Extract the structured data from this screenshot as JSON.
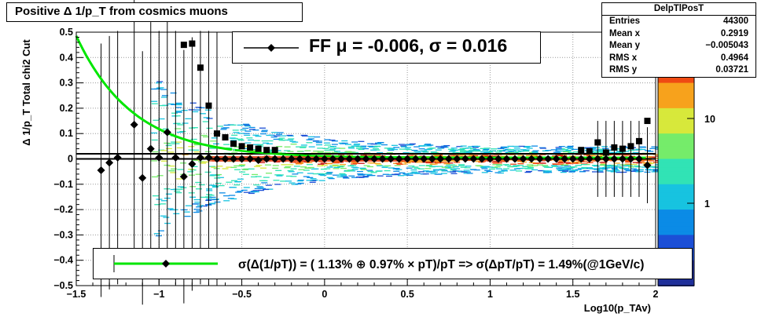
{
  "title": "Positive Δ 1/p_T from cosmics muons",
  "stats": {
    "name": "DelpTlPosT",
    "rows": [
      {
        "label": "Entries",
        "value": "44300"
      },
      {
        "label": "Mean x",
        "value": "0.2919"
      },
      {
        "label": "Mean y",
        "value": "−0.005043"
      },
      {
        "label": "RMS x",
        "value": "0.4964"
      },
      {
        "label": "RMS y",
        "value": "0.03721"
      }
    ]
  },
  "legend_top": "FF μ = -0.006, σ =   0.016",
  "legend_bottom": "σ(Δ(1/pT)) = ( 1.13% ⊕  0.97% × pT)/pT => σ(ΔpT/pT) =  1.49%(@1GeV/c)",
  "colors": {
    "fit": "#00e600",
    "markers": "#000000"
  },
  "chart_data": {
    "type": "scatter",
    "title": "Positive Δ 1/p_T from cosmics muons",
    "xlabel": "Log10(p_TAv)",
    "ylabel": "Δ 1/p_T   Total chi2 Cut",
    "xlim": [
      -1.5,
      2.0
    ],
    "ylim": [
      -0.5,
      0.5
    ],
    "x_ticks": [
      "−1.5",
      "−1",
      "−0.5",
      "0",
      "0.5",
      "1",
      "1.5",
      "2"
    ],
    "y_ticks": [
      "−0.5",
      "−0.4",
      "−0.3",
      "−0.2",
      "−0.1",
      "0",
      "0.1",
      "0.2",
      "0.3",
      "0.4",
      "0.5"
    ],
    "colorbar_labels": [
      "1",
      "10"
    ],
    "grid": true,
    "series": [
      {
        "name": "FF",
        "marker": "diamond",
        "x": [
          -1.35,
          -1.3,
          -1.25,
          -1.15,
          -1.1,
          -1.05,
          -1.0,
          -0.95,
          -0.9,
          -0.85,
          -0.8,
          -0.75,
          -0.7,
          -0.65,
          -0.6,
          -0.55,
          -0.5,
          -0.45,
          -0.4,
          -0.35,
          -0.3,
          -0.25,
          -0.2,
          -0.15,
          -0.1,
          -0.05,
          0.0,
          0.05,
          0.1,
          0.15,
          0.2,
          0.25,
          0.3,
          0.35,
          0.4,
          0.45,
          0.5,
          0.55,
          0.6,
          0.65,
          0.7,
          0.75,
          0.8,
          0.85,
          0.9,
          0.95,
          1.0,
          1.05,
          1.1,
          1.15,
          1.2,
          1.25,
          1.3,
          1.35,
          1.4,
          1.45,
          1.5,
          1.55,
          1.6,
          1.65,
          1.7,
          1.75,
          1.8,
          1.85,
          1.9,
          1.95
        ],
        "y": [
          -0.045,
          -0.015,
          0.005,
          0.135,
          -0.075,
          0.04,
          0.005,
          0.105,
          0.005,
          -0.07,
          -0.02,
          0.005,
          0.005,
          0.0,
          0.0,
          0.0,
          0.0,
          0.0,
          -0.005,
          0.0,
          0.0,
          0.0,
          0.0,
          0.0,
          0.0,
          0.0,
          0.0,
          0.0,
          0.0,
          0.0,
          0.0,
          0.0,
          0.0,
          0.0,
          0.0,
          0.0,
          0.0,
          0.0,
          0.0,
          0.0,
          0.0,
          0.0,
          0.0,
          0.0,
          0.0,
          0.0,
          0.0,
          0.0,
          0.0,
          0.0,
          0.0,
          0.0,
          0.0,
          0.0,
          0.0,
          0.0,
          0.0,
          0.0,
          0.0,
          0.0,
          0.0,
          0.0,
          0.0,
          0.0,
          0.0,
          -0.025
        ]
      },
      {
        "name": "",
        "marker": "square",
        "x": [
          -0.85,
          -0.8,
          -0.75,
          -0.7,
          -0.65,
          -0.6,
          -0.55,
          -0.5,
          -0.45,
          -0.4,
          -0.35,
          -0.3,
          1.55,
          1.6,
          1.65,
          1.7,
          1.75,
          1.8,
          1.85,
          1.9,
          1.95
        ],
        "y": [
          0.45,
          0.455,
          0.36,
          0.21,
          0.1,
          0.085,
          0.06,
          0.05,
          0.045,
          0.04,
          0.035,
          0.035,
          0.035,
          0.03,
          0.065,
          0.025,
          0.045,
          0.04,
          0.05,
          0.07,
          0.15
        ]
      }
    ],
    "fit_curve": {
      "name": "fit",
      "form": "a*exp(-b*(x+1.5))",
      "a": 0.48,
      "b": 2.9
    }
  }
}
